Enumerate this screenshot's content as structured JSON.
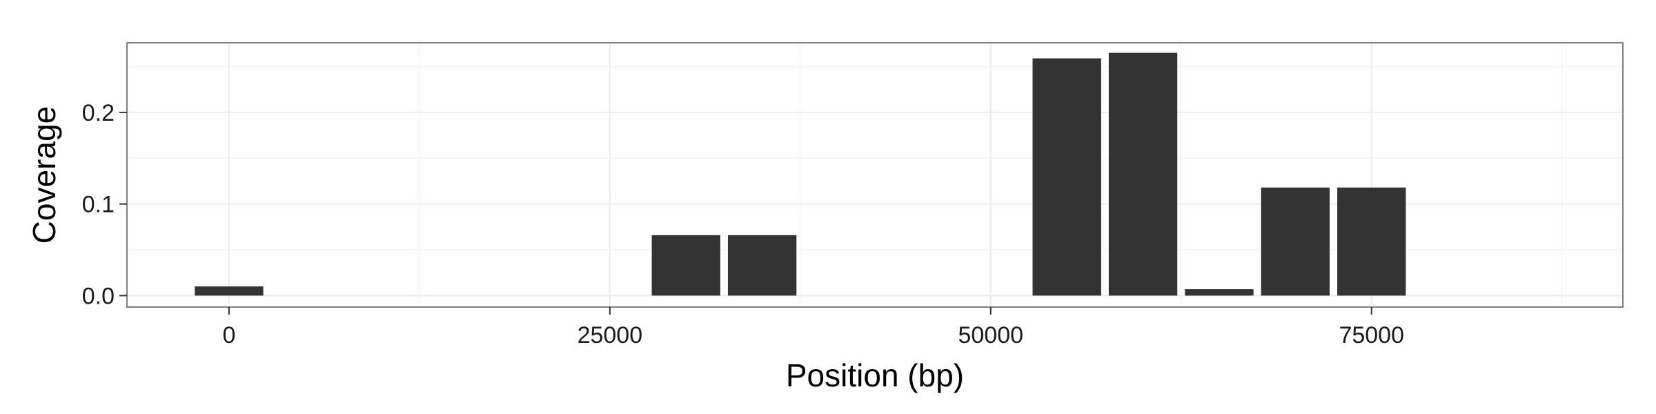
{
  "chart_data": {
    "type": "bar",
    "title": "",
    "xlabel": "Position (bp)",
    "ylabel": "Coverage",
    "xlim": [
      -6700,
      91500
    ],
    "ylim": [
      -0.0125,
      0.276
    ],
    "x_ticks": [
      0,
      25000,
      50000,
      75000
    ],
    "x_tick_labels": [
      "0",
      "25000",
      "50000",
      "75000"
    ],
    "y_ticks": [
      0.0,
      0.1,
      0.2
    ],
    "y_tick_labels": [
      "0.0",
      "0.1",
      "0.2"
    ],
    "bar_width": 4500,
    "x": [
      0,
      30000,
      35000,
      55000,
      60000,
      65000,
      70000,
      75000
    ],
    "values": [
      0.01,
      0.066,
      0.066,
      0.259,
      0.265,
      0.007,
      0.118,
      0.118
    ],
    "grid": true,
    "colors": {
      "bar": "#333333",
      "panel_background": "#ffffff",
      "panel_border": "#7f7f7f",
      "grid_major": "#ebebeb",
      "grid_minor": "#f5f5f5"
    }
  }
}
